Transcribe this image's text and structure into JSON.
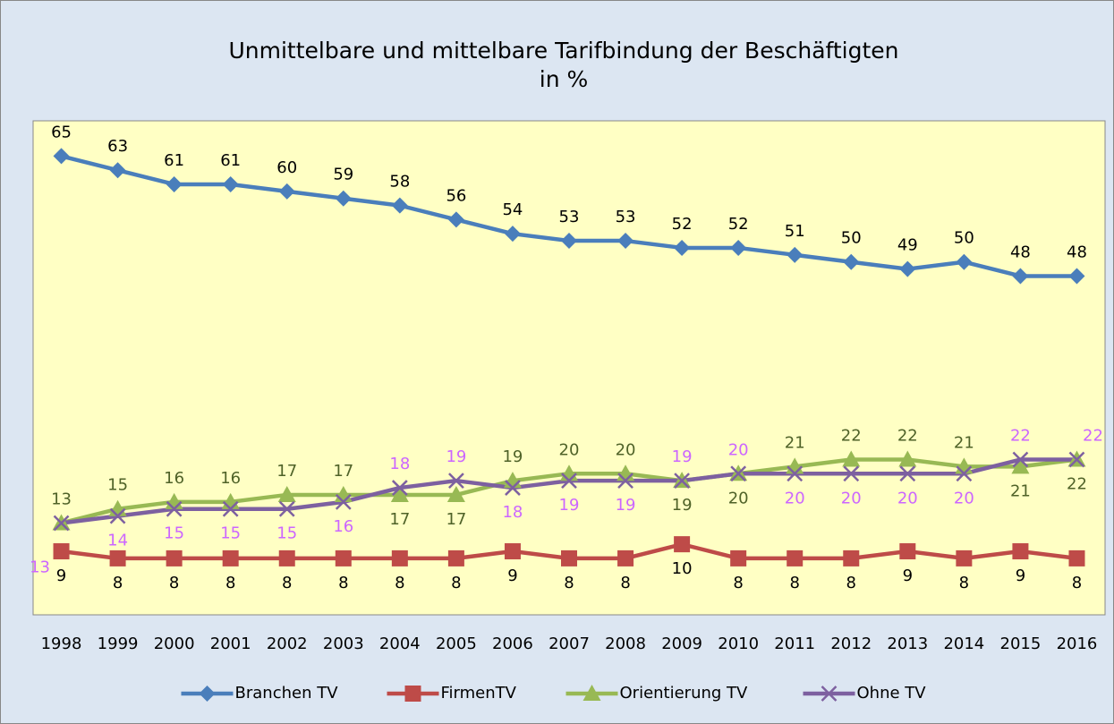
{
  "chart_data": {
    "type": "line",
    "title": "Unmittelbare und mittelbare Tarifbindung der Beschäftigten",
    "subtitle": "in %",
    "categories": [
      "1998",
      "1999",
      "2000",
      "2001",
      "2002",
      "2003",
      "2004",
      "2005",
      "2006",
      "2007",
      "2008",
      "2009",
      "2010",
      "2011",
      "2012",
      "2013",
      "2014",
      "2015",
      "2016"
    ],
    "ylim": [
      0,
      70
    ],
    "legend": "bottom",
    "series": [
      {
        "name": "Branchen TV",
        "color": "#4a7ebb",
        "marker": "diamond",
        "values": [
          65,
          63,
          61,
          61,
          60,
          59,
          58,
          56,
          54,
          53,
          53,
          52,
          52,
          51,
          50,
          49,
          50,
          48,
          48
        ]
      },
      {
        "name": "FirmenTV",
        "color": "#be4b48",
        "marker": "square",
        "values": [
          9,
          8,
          8,
          8,
          8,
          8,
          8,
          8,
          9,
          8,
          8,
          10,
          8,
          8,
          8,
          9,
          8,
          9,
          8
        ]
      },
      {
        "name": "Orientierung TV",
        "color": "#98b954",
        "marker": "triangle",
        "values": [
          13,
          15,
          16,
          16,
          17,
          17,
          17,
          17,
          19,
          20,
          20,
          19,
          20,
          21,
          22,
          22,
          21,
          21,
          22
        ]
      },
      {
        "name": "Ohne TV",
        "color": "#7d60a0",
        "marker": "x",
        "values": [
          13,
          14,
          15,
          15,
          15,
          16,
          18,
          19,
          18,
          19,
          19,
          19,
          20,
          20,
          20,
          20,
          20,
          22,
          22
        ]
      }
    ]
  }
}
